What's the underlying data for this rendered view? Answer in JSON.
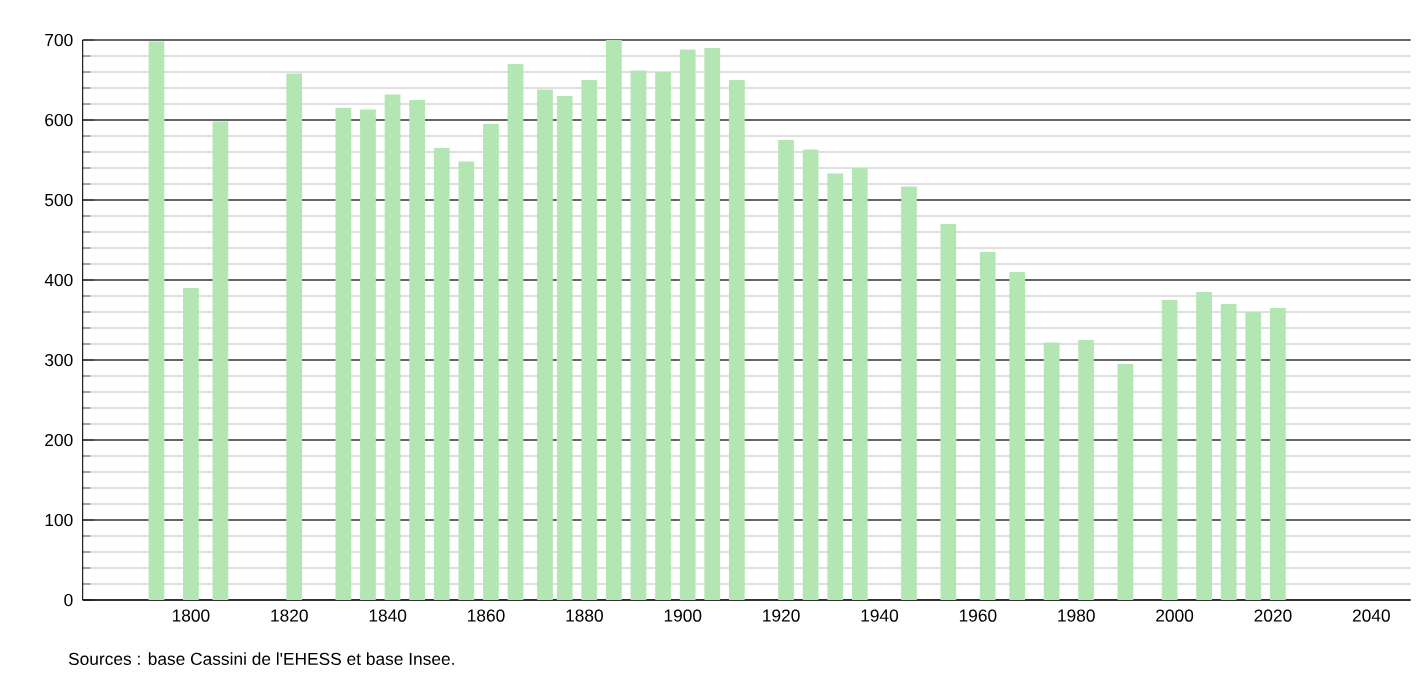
{
  "chart_data": {
    "type": "bar",
    "color": "#b3e6b3",
    "x": [
      1793,
      1800,
      1806,
      1821,
      1831,
      1836,
      1841,
      1846,
      1851,
      1856,
      1861,
      1866,
      1872,
      1876,
      1881,
      1886,
      1891,
      1896,
      1901,
      1906,
      1911,
      1921,
      1926,
      1931,
      1936,
      1946,
      1954,
      1962,
      1968,
      1975,
      1982,
      1990,
      1999,
      2006,
      2011,
      2016,
      2021
    ],
    "values": [
      698,
      390,
      598,
      658,
      615,
      613,
      632,
      625,
      565,
      548,
      595,
      670,
      638,
      630,
      650,
      700,
      662,
      660,
      688,
      690,
      650,
      575,
      563,
      533,
      540,
      517,
      470,
      435,
      410,
      322,
      325,
      295,
      375,
      385,
      370,
      360,
      365
    ],
    "xlim": [
      1778,
      2048
    ],
    "ylim": [
      0,
      700
    ],
    "xticks": [
      1800,
      1820,
      1840,
      1860,
      1880,
      1900,
      1920,
      1940,
      1960,
      1980,
      2000,
      2020,
      2040
    ],
    "yticks": [
      0,
      100,
      200,
      300,
      400,
      500,
      600,
      700
    ],
    "grid": "y",
    "annotations": [
      "Sources : base Cassini de l'EHESS et base Insee."
    ]
  }
}
